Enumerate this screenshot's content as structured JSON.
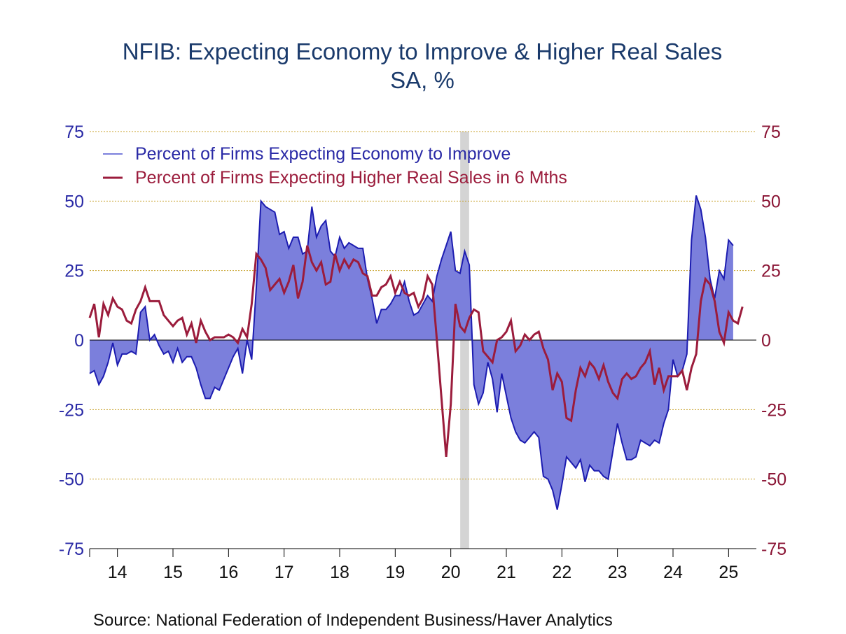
{
  "chart_data": {
    "type": "line",
    "title": "NFIB: Expecting Economy to Improve & Higher Real Sales",
    "subtitle": "SA, %",
    "source": "Source:  National Federation of Independent Business/Haver Analytics",
    "ylim": [
      -75,
      75
    ],
    "y_ticks": [
      75,
      50,
      25,
      0,
      -25,
      -50,
      -75
    ],
    "y2_ticks": [
      75,
      50,
      25,
      0,
      -25,
      -50,
      -75
    ],
    "x_start_year": 2013.5,
    "x_end_year": 2025.5,
    "year_labels": [
      "14",
      "15",
      "16",
      "17",
      "18",
      "19",
      "20",
      "21",
      "22",
      "23",
      "24",
      "25"
    ],
    "recession": [
      2020.17,
      2020.33
    ],
    "grid": true,
    "legend_position": "top-left",
    "colors": {
      "series1_line": "#1c1cb0",
      "series1_fill": "#7b7fdc",
      "series2_line": "#9b1c3c",
      "recession": "#d4d4d4",
      "grid": "#c8a028"
    },
    "series": [
      {
        "name": "Percent of Firms Expecting Economy to Improve",
        "start": 2013.5,
        "step_months": 1,
        "values": [
          -12,
          -11,
          -16,
          -13,
          -8,
          -1,
          -9,
          -5,
          -5,
          -4,
          -5,
          10,
          12,
          0,
          2,
          -2,
          -5,
          -4,
          -8,
          -3,
          -8,
          -6,
          -6,
          -10,
          -16,
          -21,
          -21,
          -17,
          -18,
          -14,
          -10,
          -6,
          -3,
          -12,
          0,
          -7,
          19,
          50,
          48,
          47,
          46,
          38,
          39,
          33,
          37,
          37,
          31,
          32,
          48,
          37,
          41,
          43,
          32,
          30,
          37,
          33,
          35,
          34,
          33,
          33,
          22,
          15,
          6,
          11,
          11,
          13,
          16,
          16,
          21,
          14,
          9,
          10,
          13,
          16,
          14,
          23,
          29,
          34,
          39,
          25,
          24,
          32,
          27,
          -16,
          -23,
          -19,
          -8,
          -14,
          -26,
          -12,
          -20,
          -28,
          -33,
          -36,
          -37,
          -35,
          -33,
          -35,
          -49,
          -50,
          -54,
          -61,
          -52,
          -42,
          -44,
          -46,
          -43,
          -51,
          -45,
          -47,
          -47,
          -49,
          -50,
          -40,
          -30,
          -37,
          -43,
          -43,
          -42,
          -36,
          -37,
          -38,
          -36,
          -37,
          -30,
          -25,
          -7,
          -13,
          -11,
          -5,
          36,
          52,
          47,
          37,
          22,
          15,
          25,
          22,
          36,
          34
        ]
      },
      {
        "name": "Percent of Firms Expecting Higher Real Sales in 6 Mths",
        "start": 2013.5,
        "step_months": 1,
        "values": [
          8,
          13,
          1,
          13,
          9,
          15,
          12,
          11,
          7,
          6,
          11,
          14,
          19,
          14,
          14,
          14,
          9,
          7,
          5,
          7,
          8,
          2,
          6,
          -1,
          7,
          3,
          0,
          1,
          1,
          1,
          2,
          1,
          -1,
          4,
          1,
          13,
          31,
          29,
          26,
          18,
          20,
          22,
          17,
          21,
          27,
          15,
          21,
          34,
          28,
          25,
          28,
          20,
          21,
          31,
          25,
          29,
          26,
          29,
          28,
          24,
          23,
          16,
          16,
          19,
          20,
          23,
          17,
          21,
          17,
          16,
          17,
          12,
          15,
          23,
          20,
          0,
          -21,
          -42,
          -23,
          13,
          5,
          3,
          8,
          11,
          10,
          -4,
          -6,
          -8,
          0,
          1,
          3,
          7,
          -4,
          -2,
          2,
          0,
          2,
          3,
          -3,
          -7,
          -18,
          -12,
          -15,
          -28,
          -29,
          -18,
          -10,
          -13,
          -8,
          -10,
          -14,
          -9,
          -15,
          -19,
          -21,
          -14,
          -12,
          -14,
          -13,
          -10,
          -8,
          -4,
          -16,
          -10,
          -18,
          -13,
          -13,
          -13,
          -11,
          -18,
          -10,
          -5,
          14,
          22,
          20,
          14,
          3,
          -1,
          10,
          7,
          6,
          12
        ]
      }
    ]
  }
}
